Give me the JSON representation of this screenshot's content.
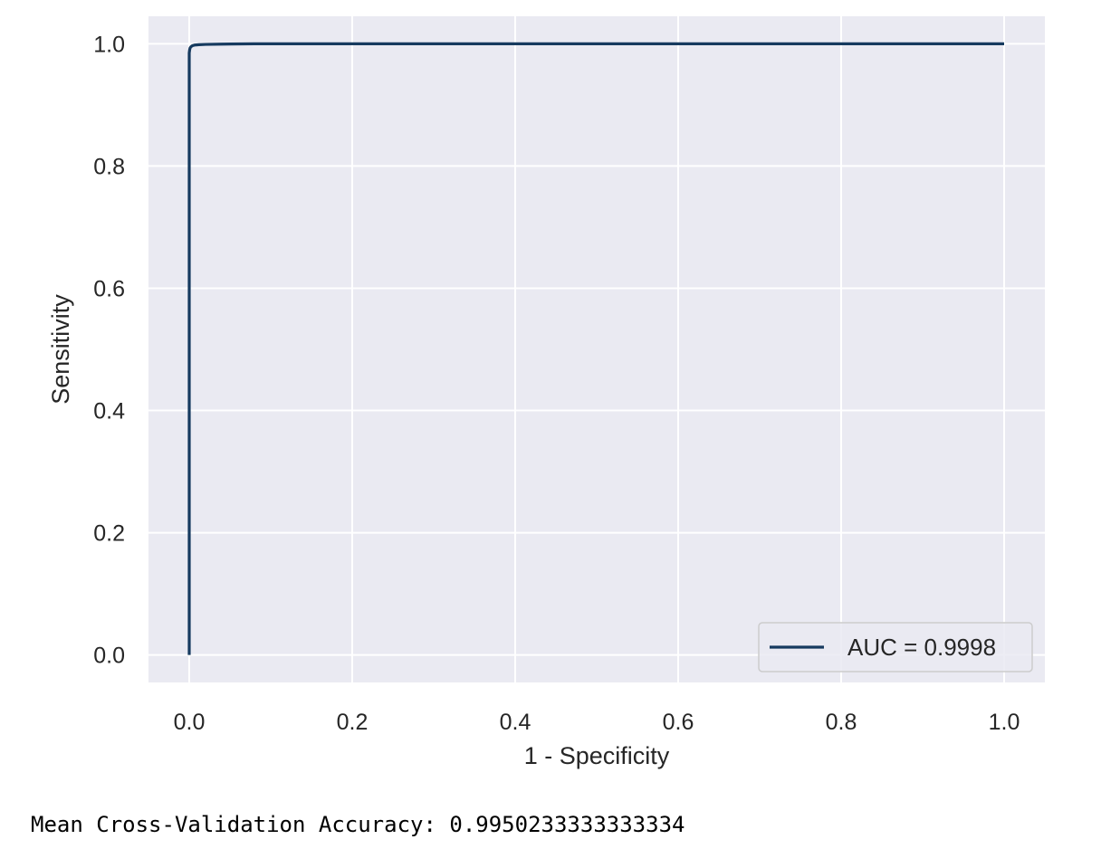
{
  "chart_data": {
    "type": "line",
    "title": "",
    "xlabel": "1 - Specificity",
    "ylabel": "Sensitivity",
    "xlim": [
      -0.05,
      1.05
    ],
    "ylim": [
      -0.045,
      1.045
    ],
    "x_ticks": [
      0.0,
      0.2,
      0.4,
      0.6,
      0.8,
      1.0
    ],
    "y_ticks": [
      0.0,
      0.2,
      0.4,
      0.6,
      0.8,
      1.0
    ],
    "x_tick_labels": [
      "0.0",
      "0.2",
      "0.4",
      "0.6",
      "0.8",
      "1.0"
    ],
    "y_tick_labels": [
      "0.0",
      "0.2",
      "0.4",
      "0.6",
      "0.8",
      "1.0"
    ],
    "grid": true,
    "background_color": "#eaeaf2",
    "grid_color": "#ffffff",
    "legend_position": "lower-right",
    "series": [
      {
        "name": "AUC = 0.9998",
        "color": "#163a5f",
        "x": [
          0.0,
          0.0,
          0.0,
          0.0005,
          0.001,
          0.002,
          0.004,
          0.007,
          0.012,
          0.02,
          0.04,
          0.08,
          0.2,
          0.5,
          1.0
        ],
        "y": [
          0.0,
          0.9,
          0.985,
          0.99,
          0.993,
          0.995,
          0.997,
          0.998,
          0.9985,
          0.999,
          0.9995,
          1.0,
          1.0,
          1.0,
          1.0
        ]
      }
    ]
  },
  "output": {
    "text": "Mean Cross-Validation Accuracy: 0.9950233333333334"
  }
}
